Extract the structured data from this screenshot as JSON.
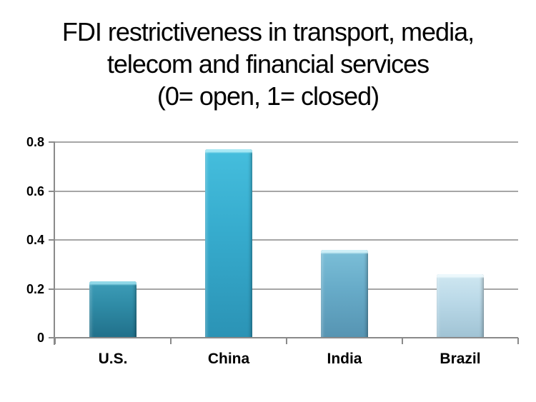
{
  "chart": {
    "title_lines": [
      "FDI restrictiveness in transport, media,",
      "telecom and financial services",
      "(0= open, 1= closed)"
    ]
  },
  "chart_data": {
    "type": "bar",
    "title": "FDI restrictiveness in transport, media, telecom and financial services (0= open, 1= closed)",
    "subtitle": "(0= open, 1= closed)",
    "categories": [
      "U.S.",
      "China",
      "India",
      "Brazil"
    ],
    "values": [
      0.23,
      0.77,
      0.36,
      0.26
    ],
    "xlabel": "",
    "ylabel": "",
    "ylim": [
      0,
      0.8
    ],
    "yticks": [
      0,
      0.2,
      0.4,
      0.6,
      0.8
    ],
    "ytick_labels": [
      "0",
      "0.2",
      "0.4",
      "0.6",
      "0.8"
    ],
    "grid": true,
    "legend": false,
    "background": "#ffffff",
    "text_color": "#000000",
    "gridline_color": "#a6a6a6",
    "axis_color": "#8a8a8a",
    "bar_colors": [
      {
        "name": "us-dark-teal",
        "bevel": "#90d8e8",
        "light": "#3d9db8",
        "base": "#2e8aa5",
        "dark": "#21708a"
      },
      {
        "name": "china-cyan",
        "bevel": "#a9e9f5",
        "light": "#45bedd",
        "base": "#36abcd",
        "dark": "#2b93b5"
      },
      {
        "name": "india-blue",
        "bevel": "#cdeff7",
        "light": "#7cbfd8",
        "base": "#67abc8",
        "dark": "#5694b2"
      },
      {
        "name": "brazil-pale-blue",
        "bevel": "#ecf8fc",
        "light": "#cfe7f1",
        "base": "#b9d8e7",
        "dark": "#a0c3d4"
      }
    ]
  }
}
